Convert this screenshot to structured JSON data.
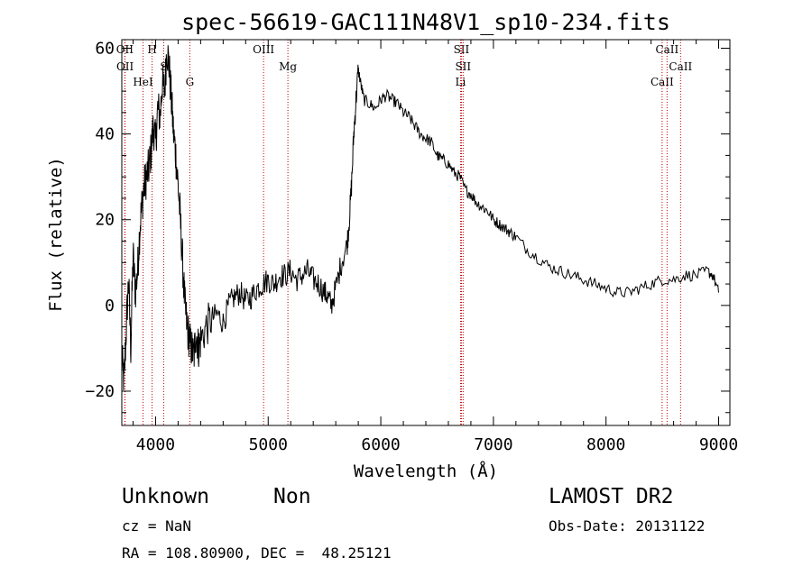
{
  "chart_data": {
    "type": "line",
    "title": "spec-56619-GAC111N48V1_sp10-234.fits",
    "xlabel": "Wavelength (Å)",
    "ylabel": "Flux (relative)",
    "xlim": [
      3700,
      9100
    ],
    "ylim": [
      -28,
      62
    ],
    "xticks": [
      4000,
      5000,
      6000,
      7000,
      8000,
      9000
    ],
    "yticks": [
      -20,
      0,
      20,
      40,
      60
    ],
    "grid": false,
    "series_color": "#000000",
    "line_color": "#c00000",
    "series": [
      {
        "x": [
          3700,
          3720,
          3740,
          3760,
          3780,
          3800,
          3820,
          3840,
          3860,
          3880,
          3900,
          3920,
          3940,
          3960,
          3980,
          4000,
          4020,
          4040,
          4060,
          4080,
          4100,
          4120,
          4140,
          4160,
          4180,
          4200,
          4220,
          4240,
          4260,
          4280,
          4300,
          4320,
          4340,
          4360,
          4380,
          4400,
          4450,
          4500,
          4550,
          4600,
          4650,
          4700,
          4750,
          4800,
          4850,
          4900,
          4950,
          5000,
          5050,
          5100,
          5150,
          5200,
          5250,
          5300,
          5350,
          5400,
          5450,
          5500,
          5530,
          5560,
          5600,
          5650,
          5700,
          5720,
          5740,
          5760,
          5780,
          5800,
          5820,
          5850,
          5900,
          5950,
          6000,
          6050,
          6100,
          6150,
          6200,
          6250,
          6300,
          6350,
          6400,
          6450,
          6500,
          6550,
          6600,
          6650,
          6700,
          6750,
          6800,
          6850,
          6900,
          6950,
          7000,
          7050,
          7100,
          7150,
          7200,
          7300,
          7400,
          7500,
          7600,
          7700,
          7800,
          7900,
          8000,
          8100,
          8200,
          8300,
          8400,
          8500,
          8600,
          8700,
          8800,
          8900,
          8950,
          9000
        ],
        "y": [
          -12,
          -18,
          -5,
          6,
          -10,
          12,
          3,
          8,
          18,
          24,
          28,
          30,
          32,
          36,
          42,
          38,
          46,
          44,
          52,
          50,
          60,
          56,
          48,
          40,
          35,
          28,
          20,
          10,
          0,
          -5,
          -8,
          -10,
          -12,
          -6,
          -10,
          -8,
          -5,
          -3,
          -2,
          -4,
          0,
          2,
          3,
          1,
          2,
          4,
          5,
          6,
          5,
          7,
          7,
          8,
          6,
          7,
          8,
          6,
          5,
          3,
          2,
          0,
          4,
          10,
          14,
          20,
          28,
          40,
          48,
          55,
          52,
          48,
          47,
          46,
          48,
          49,
          48,
          47,
          45,
          44,
          42,
          40,
          39,
          38,
          35,
          34,
          33,
          31,
          30,
          27,
          26,
          24,
          23,
          22,
          20,
          19,
          18,
          17,
          16,
          13,
          11,
          9,
          8,
          7,
          6,
          5,
          4,
          3,
          3,
          4,
          5,
          6,
          6,
          7,
          7,
          8,
          7,
          3
        ]
      }
    ],
    "annotations": {
      "lines": [
        {
          "label": "OII",
          "x": 3727
        },
        {
          "label": "OII",
          "x": 3729
        },
        {
          "label": "HeI",
          "x": 3889
        },
        {
          "label": "H",
          "x": 3969
        },
        {
          "label": "S",
          "x": 4072
        },
        {
          "label": "G",
          "x": 4304
        },
        {
          "label": "OIII",
          "x": 4959
        },
        {
          "label": "Mg",
          "x": 5175
        },
        {
          "label": "Li",
          "x": 6708
        },
        {
          "label": "SII",
          "x": 6716
        },
        {
          "label": "SII",
          "x": 6731
        },
        {
          "label": "CaII",
          "x": 8498
        },
        {
          "label": "CaII",
          "x": 8542
        },
        {
          "label": "CaII",
          "x": 8662
        }
      ]
    }
  },
  "info": {
    "class": "Unknown",
    "subclass": "Non",
    "cz": "cz = NaN",
    "radec": "RA = 108.80900, DEC =  48.25121",
    "survey": "LAMOST DR2",
    "obs_date": "Obs-Date: 20131122"
  }
}
